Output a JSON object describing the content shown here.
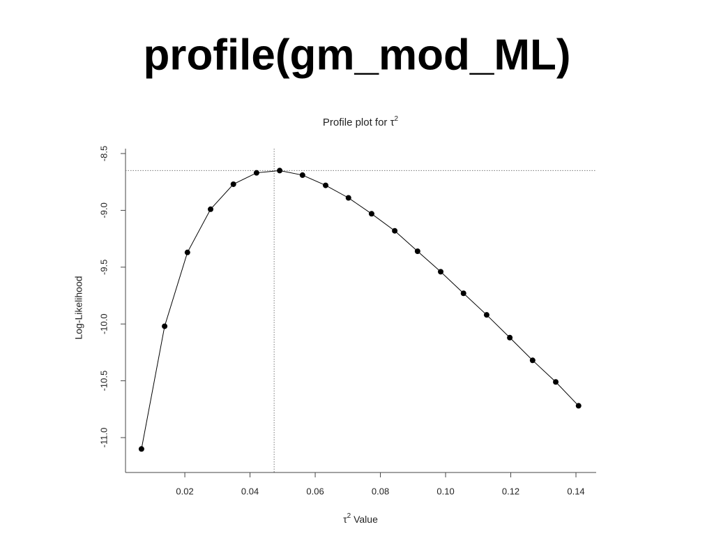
{
  "slide": {
    "title": "profile(gm_mod_ML)"
  },
  "chart_data": {
    "type": "line",
    "title": {
      "text": "Profile plot for τ",
      "sup": "2"
    },
    "xlabel": {
      "base": "τ",
      "sup": "2",
      "rest": " Value"
    },
    "ylabel": "Log-Likelihood",
    "x": [
      0.0067,
      0.0138,
      0.0208,
      0.0279,
      0.0349,
      0.042,
      0.0491,
      0.0561,
      0.0632,
      0.0702,
      0.0773,
      0.0844,
      0.0914,
      0.0985,
      0.1055,
      0.1126,
      0.1197,
      0.1267,
      0.1338,
      0.1408
    ],
    "series": [
      {
        "color": "#000000",
        "values": [
          -11.1,
          -10.02,
          -9.37,
          -8.99,
          -8.77,
          -8.67,
          -8.65,
          -8.69,
          -8.78,
          -8.89,
          -9.03,
          -9.18,
          -9.36,
          -9.54,
          -9.73,
          -9.92,
          -10.12,
          -10.32,
          -10.51,
          -10.72
        ]
      }
    ],
    "xlim": [
      0.0018,
      0.1462
    ],
    "ylim": [
      -11.307,
      -8.457
    ],
    "xticks": [
      0.02,
      0.04,
      0.06,
      0.08,
      {
        "value": 0.1,
        "label": "0.10"
      },
      0.12,
      0.14
    ],
    "yticks": [
      {
        "value": -11,
        "label": "-11.0"
      },
      -10.5,
      {
        "value": -10,
        "label": "-10.0"
      },
      -9.5,
      {
        "value": -9,
        "label": "-9.0"
      },
      -8.5
    ],
    "vline": 0.0474,
    "hline": -8.65
  }
}
